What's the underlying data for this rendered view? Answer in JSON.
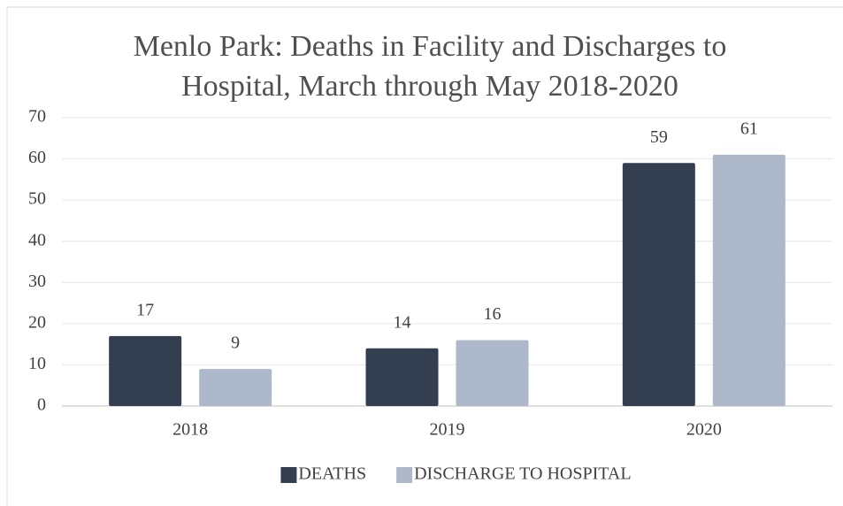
{
  "chart_data": {
    "type": "bar",
    "title": "Menlo Park: Deaths in Facility and Discharges to Hospital, March through May 2018-2020",
    "categories": [
      "2018",
      "2019",
      "2020"
    ],
    "series": [
      {
        "name": "DEATHS",
        "color": "#333f50",
        "values": [
          17,
          14,
          59
        ]
      },
      {
        "name": "DISCHARGE TO HOSPITAL",
        "color": "#adb9ca",
        "values": [
          9,
          16,
          61
        ]
      }
    ],
    "ylim": [
      0,
      70
    ],
    "yticks": [
      0,
      10,
      20,
      30,
      40,
      50,
      60,
      70
    ],
    "grid": true,
    "legend": "bottom"
  }
}
